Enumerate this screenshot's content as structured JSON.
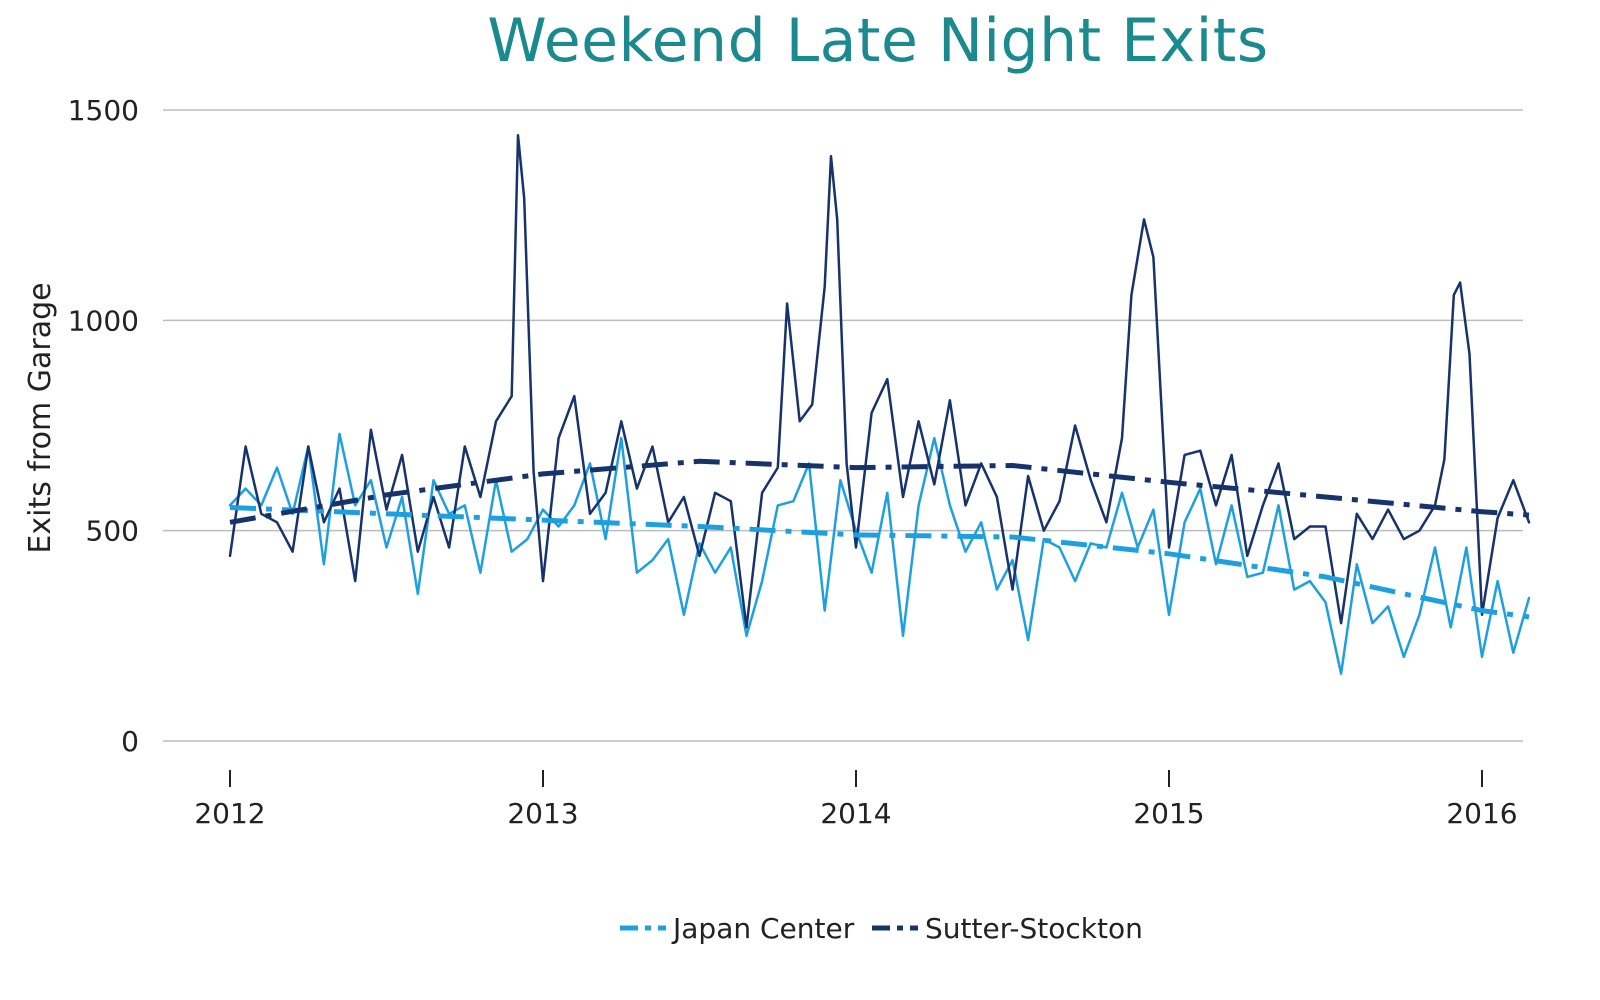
{
  "chart_data": {
    "type": "line",
    "title": "Weekend Late Night Exits",
    "ylabel": "Exits from Garage",
    "xlabel": "",
    "ylim": [
      0,
      1500
    ],
    "xlim": [
      2011.98,
      2016.2
    ],
    "yticks": [
      "0",
      "500",
      "1000",
      "1500"
    ],
    "xticks": [
      "2012",
      "2013",
      "2014",
      "2015",
      "2016"
    ],
    "legend": [
      "Japan Center",
      "Sutter-Stockton"
    ],
    "legend_position": "bottom-center",
    "grid": "horizontal",
    "colors": {
      "title": "#1a8a8e",
      "japan_center": "#1ea0e0",
      "sutter_stockton": "#17336b",
      "grid": "#bdbdbd"
    },
    "series": [
      {
        "name": "Japan Center",
        "style": "solid",
        "x": [
          2012.0,
          2012.05,
          2012.1,
          2012.15,
          2012.2,
          2012.25,
          2012.3,
          2012.35,
          2012.4,
          2012.45,
          2012.5,
          2012.55,
          2012.6,
          2012.65,
          2012.7,
          2012.75,
          2012.8,
          2012.85,
          2012.9,
          2012.95,
          2013.0,
          2013.05,
          2013.1,
          2013.15,
          2013.2,
          2013.25,
          2013.3,
          2013.35,
          2013.4,
          2013.45,
          2013.5,
          2013.55,
          2013.6,
          2013.65,
          2013.7,
          2013.75,
          2013.8,
          2013.85,
          2013.9,
          2013.95,
          2014.0,
          2014.05,
          2014.1,
          2014.15,
          2014.2,
          2014.25,
          2014.3,
          2014.35,
          2014.4,
          2014.45,
          2014.5,
          2014.55,
          2014.6,
          2014.65,
          2014.7,
          2014.75,
          2014.8,
          2014.85,
          2014.9,
          2014.95,
          2015.0,
          2015.05,
          2015.1,
          2015.15,
          2015.2,
          2015.25,
          2015.3,
          2015.35,
          2015.4,
          2015.45,
          2015.5,
          2015.55,
          2015.6,
          2015.65,
          2015.7,
          2015.75,
          2015.8,
          2015.85,
          2015.9,
          2015.95,
          2016.0,
          2016.05,
          2016.1,
          2016.15
        ],
        "values": [
          560,
          600,
          560,
          650,
          540,
          700,
          420,
          730,
          560,
          620,
          460,
          580,
          350,
          620,
          540,
          560,
          400,
          620,
          450,
          480,
          550,
          510,
          560,
          660,
          480,
          720,
          400,
          430,
          480,
          300,
          470,
          400,
          460,
          250,
          380,
          560,
          570,
          660,
          310,
          620,
          500,
          400,
          590,
          250,
          560,
          720,
          560,
          450,
          520,
          360,
          430,
          240,
          480,
          460,
          380,
          470,
          460,
          590,
          460,
          550,
          300,
          520,
          600,
          420,
          560,
          390,
          400,
          560,
          360,
          380,
          330,
          160,
          420,
          280,
          320,
          200,
          300,
          460,
          270,
          460,
          200,
          380,
          210,
          340
        ]
      },
      {
        "name": "Sutter-Stockton",
        "style": "solid",
        "x": [
          2012.0,
          2012.05,
          2012.1,
          2012.15,
          2012.2,
          2012.25,
          2012.3,
          2012.35,
          2012.4,
          2012.45,
          2012.5,
          2012.55,
          2012.6,
          2012.65,
          2012.7,
          2012.75,
          2012.8,
          2012.85,
          2012.9,
          2012.92,
          2012.94,
          2012.97,
          2013.0,
          2013.05,
          2013.1,
          2013.15,
          2013.2,
          2013.25,
          2013.3,
          2013.35,
          2013.4,
          2013.45,
          2013.5,
          2013.55,
          2013.6,
          2013.65,
          2013.7,
          2013.75,
          2013.78,
          2013.82,
          2013.86,
          2013.9,
          2013.92,
          2013.94,
          2013.97,
          2014.0,
          2014.05,
          2014.1,
          2014.15,
          2014.2,
          2014.25,
          2014.3,
          2014.35,
          2014.4,
          2014.45,
          2014.5,
          2014.55,
          2014.6,
          2014.65,
          2014.7,
          2014.75,
          2014.8,
          2014.85,
          2014.88,
          2014.92,
          2014.95,
          2015.0,
          2015.05,
          2015.1,
          2015.15,
          2015.2,
          2015.25,
          2015.3,
          2015.35,
          2015.4,
          2015.45,
          2015.5,
          2015.55,
          2015.6,
          2015.65,
          2015.7,
          2015.75,
          2015.8,
          2015.85,
          2015.88,
          2015.91,
          2015.93,
          2015.96,
          2016.0,
          2016.05,
          2016.1,
          2016.15
        ],
        "values": [
          440,
          700,
          540,
          520,
          450,
          700,
          520,
          600,
          380,
          740,
          550,
          680,
          450,
          580,
          460,
          700,
          580,
          760,
          820,
          1440,
          1290,
          640,
          380,
          720,
          820,
          540,
          590,
          760,
          600,
          700,
          520,
          580,
          440,
          590,
          570,
          270,
          590,
          650,
          1040,
          760,
          800,
          1080,
          1390,
          1240,
          660,
          460,
          780,
          860,
          580,
          760,
          610,
          810,
          560,
          660,
          580,
          360,
          630,
          500,
          570,
          750,
          620,
          520,
          720,
          1060,
          1240,
          1150,
          460,
          680,
          690,
          560,
          680,
          440,
          560,
          660,
          480,
          510,
          510,
          280,
          540,
          480,
          550,
          480,
          500,
          560,
          670,
          1060,
          1090,
          920,
          300,
          530,
          620,
          520
        ]
      },
      {
        "name": "Japan Center",
        "style": "trend",
        "x": [
          2012.0,
          2012.5,
          2013.0,
          2013.5,
          2014.0,
          2014.5,
          2015.0,
          2015.5,
          2016.0,
          2016.15
        ],
        "values": [
          555,
          540,
          525,
          510,
          490,
          485,
          445,
          390,
          310,
          295
        ]
      },
      {
        "name": "Sutter-Stockton",
        "style": "trend",
        "x": [
          2012.0,
          2012.5,
          2013.0,
          2013.5,
          2014.0,
          2014.5,
          2015.0,
          2015.5,
          2016.0,
          2016.15
        ],
        "values": [
          520,
          585,
          635,
          665,
          650,
          655,
          615,
          580,
          545,
          537
        ]
      }
    ]
  }
}
